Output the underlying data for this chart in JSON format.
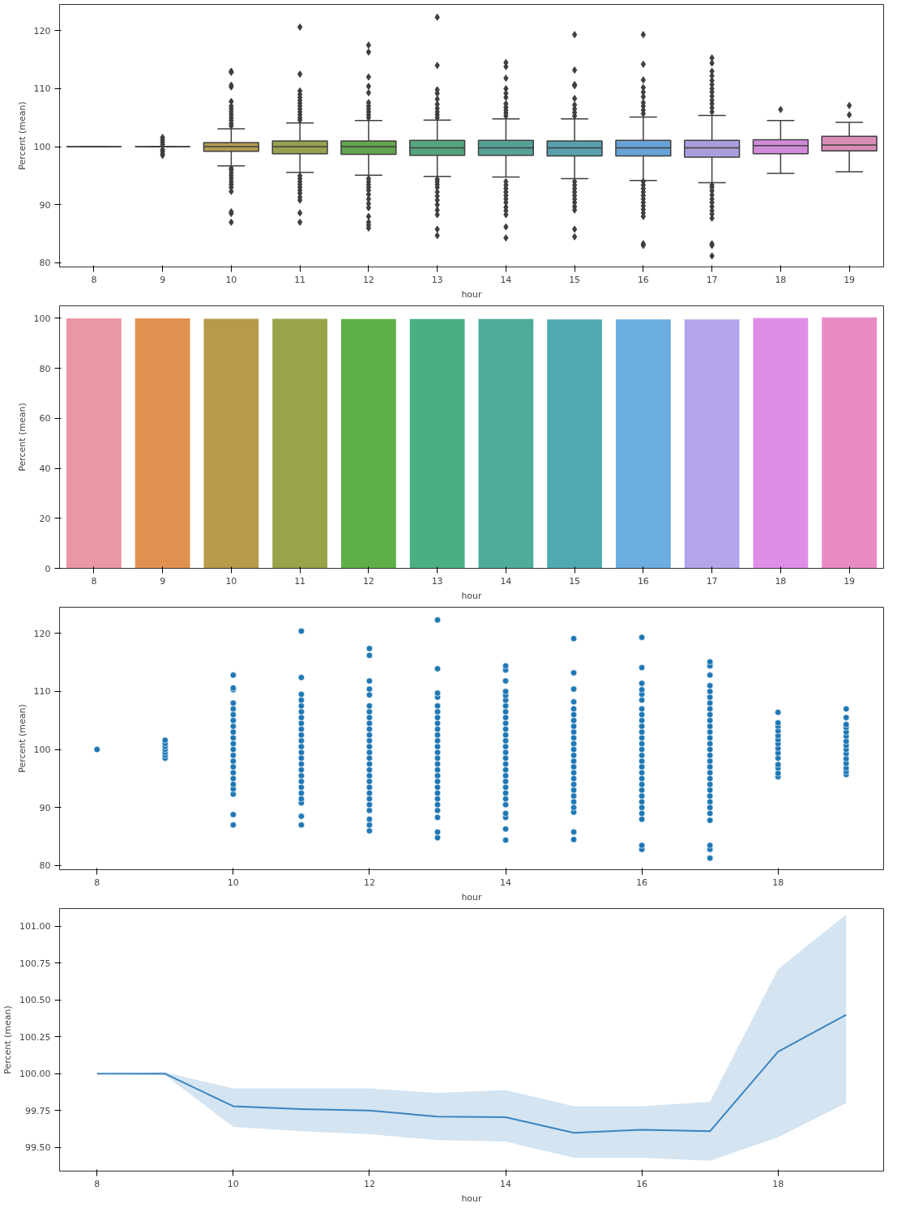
{
  "chart_data": [
    {
      "type": "box",
      "xlabel": "hour",
      "ylabel": "Percent (mean)",
      "categories": [
        "8",
        "9",
        "10",
        "11",
        "12",
        "13",
        "14",
        "15",
        "16",
        "17",
        "18",
        "19"
      ],
      "ylim": [
        79.3,
        124.5
      ],
      "yticks": [
        80,
        90,
        100,
        110,
        120
      ],
      "colors": [
        null,
        null,
        "#b29a50",
        "#98a050",
        "#63a550",
        "#54a47f",
        "#55a198",
        "#579fad",
        "#68a3d6",
        "#ab9ddc",
        "#d08ad8",
        "#d88cb8"
      ],
      "boxes": [
        {
          "low": 100,
          "q1": 100,
          "median": 100,
          "q3": 100,
          "high": 100
        },
        {
          "low": 100,
          "q1": 100,
          "median": 100,
          "q3": 100,
          "high": 100,
          "outliers": [
            98.5,
            98.8,
            99.2,
            99.5,
            100.4,
            100.8,
            101.2,
            101.6
          ]
        },
        {
          "low": 96.7,
          "q1": 99.2,
          "median": 100,
          "q3": 100.7,
          "high": 103.1,
          "outliers": [
            87,
            88.5,
            88.8,
            92.3,
            93,
            93.5,
            94,
            94.5,
            95,
            95.5,
            96,
            96.3,
            103.6,
            104,
            104.5,
            105,
            105.5,
            106,
            106.5,
            107,
            107.8,
            110.3,
            110.6,
            112.8,
            113
          ]
        },
        {
          "low": 95.6,
          "q1": 98.8,
          "median": 100,
          "q3": 101,
          "high": 104.1,
          "outliers": [
            87,
            88.6,
            90.8,
            91.3,
            92,
            92.5,
            93,
            93.5,
            94,
            94.5,
            95,
            104.6,
            105,
            105.5,
            106,
            106.5,
            107,
            107.5,
            108,
            108.5,
            109,
            109.6,
            112.5,
            120.6
          ]
        },
        {
          "low": 95.1,
          "q1": 98.7,
          "median": 100,
          "q3": 101,
          "high": 104.5,
          "outliers": [
            86,
            86.5,
            87,
            88,
            89.5,
            90.2,
            91,
            91.8,
            92.5,
            93,
            93.5,
            94,
            94.5,
            105,
            105.5,
            106,
            106.5,
            107,
            107.6,
            109.3,
            110.4,
            112,
            116.3,
            117.5
          ]
        },
        {
          "low": 94.9,
          "q1": 98.5,
          "median": 99.8,
          "q3": 101.1,
          "high": 104.6,
          "outliers": [
            84.7,
            85.8,
            88.3,
            89.1,
            90,
            90.8,
            91.5,
            92.2,
            93,
            93.5,
            94,
            94.4,
            105,
            105.5,
            106,
            106.6,
            107.3,
            108.2,
            109.2,
            109.8,
            114,
            122.3
          ]
        },
        {
          "low": 94.8,
          "q1": 98.5,
          "median": 99.8,
          "q3": 101.1,
          "high": 104.8,
          "outliers": [
            84.3,
            86.2,
            88.3,
            89,
            89.6,
            90.4,
            91,
            91.6,
            92.2,
            92.8,
            93.4,
            94,
            105.3,
            105.8,
            106.3,
            106.8,
            107.4,
            108.5,
            109.2,
            110,
            111.8,
            113.8,
            114.5
          ]
        },
        {
          "low": 94.5,
          "q1": 98.4,
          "median": 99.8,
          "q3": 101,
          "high": 104.8,
          "outliers": [
            84.5,
            85.8,
            89.1,
            89.7,
            90.4,
            91,
            91.6,
            92.2,
            92.8,
            93.4,
            94,
            105.3,
            105.9,
            106.5,
            107.2,
            108.3,
            110.5,
            110.7,
            113.2,
            119.3
          ]
        },
        {
          "low": 94.2,
          "q1": 98.4,
          "median": 99.8,
          "q3": 101.1,
          "high": 105.1,
          "outliers": [
            83,
            83.3,
            88,
            88.6,
            89.2,
            89.8,
            90.4,
            91,
            91.6,
            92.2,
            92.8,
            93.4,
            94,
            105.7,
            106.3,
            107,
            107.6,
            108.6,
            109.4,
            110.2,
            111.5,
            114.2,
            119.3
          ]
        },
        {
          "low": 93.8,
          "q1": 98.2,
          "median": 99.8,
          "q3": 101.1,
          "high": 105.4,
          "outliers": [
            81.2,
            83,
            83.3,
            87.7,
            88.4,
            89,
            89.7,
            90.4,
            91,
            91.7,
            92.4,
            93,
            93.4,
            106,
            106.7,
            107.4,
            108,
            108.7,
            109.4,
            110,
            110.7,
            111.4,
            112.2,
            113,
            114.4,
            115.3
          ]
        },
        {
          "low": 95.4,
          "q1": 98.8,
          "median": 100.2,
          "q3": 101.2,
          "high": 104.5,
          "outliers": [
            106.4
          ]
        },
        {
          "low": 95.7,
          "q1": 99.3,
          "median": 100.3,
          "q3": 101.8,
          "high": 104.2,
          "outliers": [
            105.5,
            107.1
          ]
        }
      ]
    },
    {
      "type": "bar",
      "xlabel": "hour",
      "ylabel": "Percent (mean)",
      "categories": [
        "8",
        "9",
        "10",
        "11",
        "12",
        "13",
        "14",
        "15",
        "16",
        "17",
        "18",
        "19"
      ],
      "ylim": [
        0,
        105
      ],
      "yticks": [
        0,
        20,
        40,
        60,
        80,
        100
      ],
      "values": [
        100,
        100,
        99.8,
        99.8,
        99.7,
        99.7,
        99.7,
        99.6,
        99.6,
        99.6,
        100.1,
        100.4
      ],
      "colors": [
        "#ea96a3",
        "#e1914f",
        "#b79a4a",
        "#9aa24a",
        "#5eaf49",
        "#4ab083",
        "#4dac9c",
        "#50aab2",
        "#6badde",
        "#b4a4ea",
        "#df8ee8",
        "#e88bc5"
      ]
    },
    {
      "type": "scatter",
      "xlabel": "hour",
      "ylabel": "Percent (mean)",
      "marker": "circle",
      "xlim": [
        7.45,
        19.55
      ],
      "xticks": [
        8,
        10,
        12,
        14,
        16,
        18
      ],
      "ylim": [
        79.3,
        124.5
      ],
      "yticks": [
        80,
        90,
        100,
        110,
        120
      ],
      "series": [
        {
          "color": "#1f77b4",
          "x": [
            8
          ],
          "values": [
            100
          ]
        },
        {
          "color": "#1f77b4",
          "x": [
            9,
            9,
            9,
            9,
            9,
            9,
            9
          ],
          "values": [
            98.5,
            99,
            99.5,
            100,
            100.5,
            101,
            101.6
          ]
        },
        {
          "color": "#1f77b4",
          "x": [
            10,
            10,
            10,
            10,
            10,
            10,
            10,
            10,
            10,
            10,
            10,
            10,
            10,
            10,
            10,
            10,
            10,
            10,
            10,
            10,
            10,
            10
          ],
          "values": [
            87,
            88.8,
            92.3,
            93.2,
            94,
            95,
            96,
            97,
            98,
            99,
            100,
            101,
            102,
            103,
            104,
            105,
            106,
            107,
            108,
            110.3,
            110.6,
            112.8
          ]
        },
        {
          "color": "#1f77b4",
          "x": [
            11,
            11,
            11,
            11,
            11,
            11,
            11,
            11,
            11,
            11,
            11,
            11,
            11,
            11,
            11,
            11,
            11,
            11,
            11,
            11,
            11,
            11,
            11,
            11
          ],
          "values": [
            87,
            88.5,
            90.8,
            91.5,
            92.5,
            93.5,
            94.5,
            95.5,
            96.5,
            97.5,
            98.5,
            99.5,
            100.5,
            101.5,
            102.5,
            103.5,
            104.5,
            105.5,
            106.5,
            107.5,
            108.5,
            109.5,
            112.4,
            120.4
          ]
        },
        {
          "color": "#1f77b4",
          "x": [
            12,
            12,
            12,
            12,
            12,
            12,
            12,
            12,
            12,
            12,
            12,
            12,
            12,
            12,
            12,
            12,
            12,
            12,
            12,
            12,
            12,
            12,
            12,
            12,
            12,
            12,
            12
          ],
          "values": [
            86,
            87,
            88,
            89.5,
            90.5,
            91.5,
            92.5,
            93.5,
            94.5,
            95.5,
            96.5,
            97.5,
            98.5,
            99.5,
            100.5,
            101.5,
            102.5,
            103.5,
            104.5,
            105.5,
            106.5,
            107.5,
            109.4,
            110.4,
            111.8,
            116.2,
            117.4
          ]
        },
        {
          "color": "#1f77b4",
          "x": [
            13,
            13,
            13,
            13,
            13,
            13,
            13,
            13,
            13,
            13,
            13,
            13,
            13,
            13,
            13,
            13,
            13,
            13,
            13,
            13,
            13,
            13,
            13,
            13,
            13,
            13
          ],
          "values": [
            84.8,
            85.8,
            88.3,
            89.5,
            90.5,
            91.5,
            92.5,
            93.5,
            94.5,
            95.5,
            96.5,
            97.5,
            98.5,
            99.5,
            100.5,
            101.5,
            102.5,
            103.5,
            104.5,
            105.5,
            106.5,
            107.5,
            109,
            109.7,
            113.9,
            122.3
          ]
        },
        {
          "color": "#1f77b4",
          "x": [
            14,
            14,
            14,
            14,
            14,
            14,
            14,
            14,
            14,
            14,
            14,
            14,
            14,
            14,
            14,
            14,
            14,
            14,
            14,
            14,
            14,
            14,
            14,
            14,
            14,
            14,
            14,
            14
          ],
          "values": [
            84.4,
            86.3,
            88.3,
            89,
            90.5,
            91.5,
            92.5,
            93.5,
            94.5,
            95.5,
            96.5,
            97.5,
            98.5,
            99.5,
            100.5,
            101.5,
            102.5,
            103.5,
            104.5,
            105.5,
            106.5,
            107.5,
            108.5,
            109.3,
            110,
            111.8,
            113.7,
            114.4
          ]
        },
        {
          "color": "#1f77b4",
          "x": [
            15,
            15,
            15,
            15,
            15,
            15,
            15,
            15,
            15,
            15,
            15,
            15,
            15,
            15,
            15,
            15,
            15,
            15,
            15,
            15,
            15,
            15,
            15,
            15,
            15
          ],
          "values": [
            84.5,
            85.8,
            89.2,
            90,
            91,
            92,
            93,
            94,
            95,
            96,
            97,
            98,
            99,
            100,
            101,
            102,
            103,
            104,
            105,
            106,
            107,
            108.2,
            110.4,
            113.2,
            119.1
          ]
        },
        {
          "color": "#1f77b4",
          "x": [
            16,
            16,
            16,
            16,
            16,
            16,
            16,
            16,
            16,
            16,
            16,
            16,
            16,
            16,
            16,
            16,
            16,
            16,
            16,
            16,
            16,
            16,
            16,
            16,
            16,
            16,
            16,
            16
          ],
          "values": [
            82.8,
            83.5,
            88,
            89,
            90,
            91,
            92,
            93,
            94,
            95,
            96,
            97,
            98,
            99,
            100,
            101,
            102,
            103,
            104,
            105,
            106,
            107,
            108.5,
            109.5,
            110.3,
            111.4,
            114.1,
            119.3
          ]
        },
        {
          "color": "#1f77b4",
          "x": [
            17,
            17,
            17,
            17,
            17,
            17,
            17,
            17,
            17,
            17,
            17,
            17,
            17,
            17,
            17,
            17,
            17,
            17,
            17,
            17,
            17,
            17,
            17,
            17,
            17,
            17,
            17,
            17,
            17,
            17
          ],
          "values": [
            81.3,
            82.8,
            83.5,
            87.8,
            89,
            90,
            91,
            92,
            93,
            94,
            95,
            96,
            97,
            98,
            99,
            100,
            101,
            102,
            103,
            104,
            105,
            106,
            107,
            108,
            109,
            110,
            111,
            112.8,
            114.4,
            115.1
          ]
        },
        {
          "color": "#1f77b4",
          "x": [
            18,
            18,
            18,
            18,
            18,
            18,
            18,
            18,
            18,
            18,
            18,
            18,
            18,
            18
          ],
          "values": [
            95.3,
            95.9,
            96.8,
            97.4,
            98.5,
            99.4,
            100.2,
            101,
            101.7,
            102.4,
            103.2,
            104,
            104.6,
            106.4
          ]
        },
        {
          "color": "#1f77b4",
          "x": [
            19,
            19,
            19,
            19,
            19,
            19,
            19,
            19,
            19,
            19,
            19,
            19,
            19,
            19,
            19
          ],
          "values": [
            95.7,
            96.2,
            96.8,
            97.6,
            98.4,
            99.3,
            100,
            100.7,
            101.4,
            102.3,
            103,
            103.8,
            104.3,
            105.5,
            107
          ]
        }
      ]
    },
    {
      "type": "line",
      "xlabel": "hour",
      "ylabel": "Percent (mean)",
      "xlim": [
        7.45,
        19.55
      ],
      "xticks": [
        8,
        10,
        12,
        14,
        16,
        18
      ],
      "ylim": [
        99.34,
        101.12
      ],
      "yticks": [
        {
          "value": 99.5,
          "label": "99.50"
        },
        {
          "value": 99.75,
          "label": "99.75"
        },
        {
          "value": 100,
          "label": "100.00"
        },
        {
          "value": 100.25,
          "label": "100.25"
        },
        {
          "value": 100.5,
          "label": "100.50"
        },
        {
          "value": 100.75,
          "label": "100.75"
        },
        {
          "value": 101,
          "label": "101.00"
        }
      ],
      "series": [
        {
          "color": "#3a84c0",
          "x": [
            8,
            9,
            10,
            11,
            12,
            13,
            14,
            15,
            16,
            17,
            18,
            19
          ],
          "values": [
            100,
            100,
            99.78,
            99.76,
            99.75,
            99.71,
            99.705,
            99.6,
            99.62,
            99.61,
            100.15,
            100.4
          ],
          "lower": [
            100,
            99.99,
            99.64,
            99.61,
            99.59,
            99.55,
            99.54,
            99.43,
            99.43,
            99.41,
            99.57,
            99.8
          ],
          "upper": [
            100,
            100.01,
            99.9,
            99.9,
            99.9,
            99.87,
            99.89,
            99.78,
            99.78,
            99.81,
            100.71,
            101.08
          ]
        }
      ]
    }
  ]
}
